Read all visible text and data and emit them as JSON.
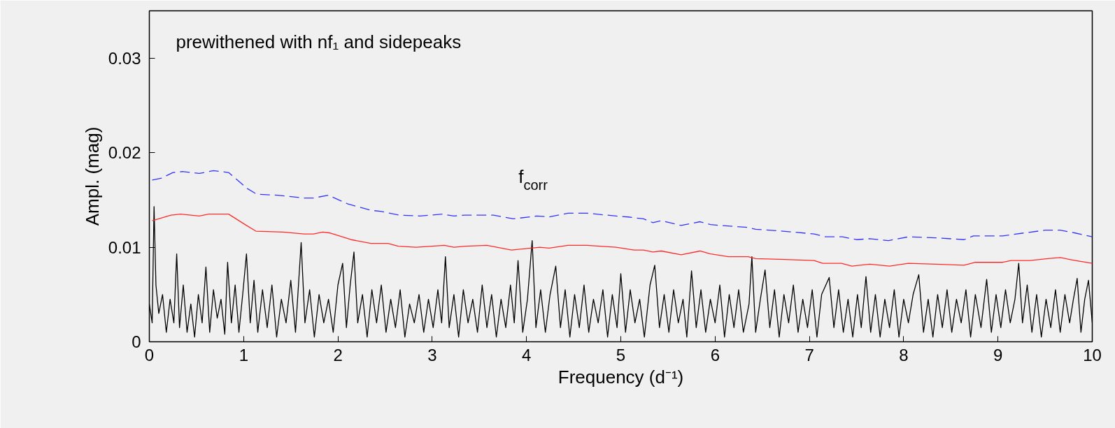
{
  "chart_data": {
    "type": "line",
    "xlabel": "Frequency (d⁻¹)",
    "ylabel": "Ampl. (mag)",
    "xlim": [
      0,
      10
    ],
    "ylim": [
      0,
      0.035
    ],
    "xticks": [
      0,
      1,
      2,
      3,
      4,
      5,
      6,
      7,
      8,
      9,
      10
    ],
    "yticks": [
      0,
      0.01,
      0.02,
      0.03
    ],
    "grid": false,
    "annotations": [
      "prewithened with nf₁ and sidepeaks",
      "f$_{corr}$"
    ],
    "series": [
      {
        "color": "#000000",
        "line_style": "solid",
        "x": [
          0.0,
          0.03,
          0.05,
          0.07,
          0.1,
          0.14,
          0.18,
          0.22,
          0.26,
          0.29,
          0.32,
          0.36,
          0.4,
          0.44,
          0.48,
          0.52,
          0.56,
          0.6,
          0.64,
          0.68,
          0.72,
          0.76,
          0.8,
          0.83,
          0.87,
          0.91,
          0.95,
          0.99,
          1.03,
          1.07,
          1.11,
          1.15,
          1.2,
          1.25,
          1.3,
          1.35,
          1.4,
          1.45,
          1.5,
          1.55,
          1.61,
          1.65,
          1.7,
          1.75,
          1.8,
          1.85,
          1.9,
          1.95,
          2.0,
          2.05,
          2.09,
          2.13,
          2.17,
          2.21,
          2.26,
          2.31,
          2.36,
          2.41,
          2.46,
          2.51,
          2.56,
          2.61,
          2.66,
          2.71,
          2.76,
          2.81,
          2.86,
          2.91,
          2.96,
          3.01,
          3.06,
          3.1,
          3.14,
          3.18,
          3.23,
          3.28,
          3.33,
          3.38,
          3.43,
          3.48,
          3.53,
          3.58,
          3.63,
          3.68,
          3.73,
          3.78,
          3.83,
          3.87,
          3.91,
          3.96,
          4.01,
          4.06,
          4.1,
          4.15,
          4.2,
          4.25,
          4.31,
          4.36,
          4.41,
          4.46,
          4.51,
          4.56,
          4.61,
          4.66,
          4.71,
          4.76,
          4.81,
          4.86,
          4.91,
          4.96,
          5.0,
          5.05,
          5.1,
          5.15,
          5.2,
          5.25,
          5.31,
          5.36,
          5.41,
          5.46,
          5.51,
          5.56,
          5.61,
          5.66,
          5.7,
          5.75,
          5.8,
          5.85,
          5.9,
          5.95,
          6.0,
          6.05,
          6.1,
          6.15,
          6.2,
          6.25,
          6.3,
          6.36,
          6.39,
          6.43,
          6.48,
          6.53,
          6.58,
          6.63,
          6.68,
          6.73,
          6.78,
          6.83,
          6.88,
          6.93,
          6.98,
          7.03,
          7.08,
          7.13,
          7.21,
          7.26,
          7.31,
          7.36,
          7.41,
          7.46,
          7.51,
          7.55,
          7.6,
          7.65,
          7.7,
          7.75,
          7.8,
          7.85,
          7.9,
          7.95,
          8.0,
          8.05,
          8.1,
          8.16,
          8.21,
          8.26,
          8.31,
          8.36,
          8.41,
          8.46,
          8.51,
          8.56,
          8.61,
          8.66,
          8.71,
          8.76,
          8.82,
          8.88,
          8.93,
          8.98,
          9.03,
          9.08,
          9.13,
          9.18,
          9.22,
          9.26,
          9.31,
          9.36,
          9.41,
          9.46,
          9.51,
          9.56,
          9.61,
          9.66,
          9.71,
          9.76,
          9.8,
          9.84,
          9.88,
          9.92,
          9.96,
          10.0
        ],
        "values": [
          0.004,
          0.002,
          0.0143,
          0.006,
          0.003,
          0.005,
          0.001,
          0.0045,
          0.002,
          0.0093,
          0.0015,
          0.006,
          0.001,
          0.004,
          0.0005,
          0.005,
          0.002,
          0.0079,
          0.001,
          0.0055,
          0.0025,
          0.0045,
          0.0008,
          0.0084,
          0.002,
          0.006,
          0.001,
          0.005,
          0.0093,
          0.002,
          0.0065,
          0.001,
          0.0055,
          0.0015,
          0.006,
          0.0005,
          0.0045,
          0.002,
          0.0065,
          0.001,
          0.0105,
          0.002,
          0.0055,
          0.0005,
          0.005,
          0.002,
          0.0045,
          0.001,
          0.006,
          0.0083,
          0.0015,
          0.006,
          0.0095,
          0.002,
          0.005,
          0.0005,
          0.0055,
          0.002,
          0.006,
          0.001,
          0.0045,
          0.0015,
          0.0055,
          0.0005,
          0.004,
          0.002,
          0.005,
          0.001,
          0.0045,
          0.0015,
          0.0055,
          0.002,
          0.009,
          0.0015,
          0.005,
          0.0005,
          0.0055,
          0.002,
          0.0045,
          0.001,
          0.006,
          0.0015,
          0.005,
          0.0005,
          0.0045,
          0.0015,
          0.006,
          0.002,
          0.0086,
          0.001,
          0.0045,
          0.0107,
          0.0015,
          0.0055,
          0.001,
          0.005,
          0.008,
          0.0015,
          0.0055,
          0.0005,
          0.005,
          0.0015,
          0.006,
          0.001,
          0.0045,
          0.002,
          0.0055,
          0.0005,
          0.005,
          0.0015,
          0.0072,
          0.001,
          0.0055,
          0.002,
          0.0045,
          0.0005,
          0.006,
          0.0081,
          0.0015,
          0.005,
          0.001,
          0.0055,
          0.002,
          0.0045,
          0.0005,
          0.0075,
          0.0015,
          0.0055,
          0.001,
          0.0045,
          0.002,
          0.006,
          0.0005,
          0.005,
          0.0015,
          0.0055,
          0.001,
          0.004,
          0.009,
          0.001,
          0.0045,
          0.0076,
          0.0015,
          0.0055,
          0.0005,
          0.005,
          0.002,
          0.006,
          0.001,
          0.0045,
          0.0015,
          0.0055,
          0.0005,
          0.005,
          0.0068,
          0.0015,
          0.0055,
          0.001,
          0.0045,
          0.0005,
          0.005,
          0.0015,
          0.0069,
          0.001,
          0.005,
          0.0005,
          0.0045,
          0.0015,
          0.0055,
          0.0005,
          0.0045,
          0.002,
          0.005,
          0.0071,
          0.001,
          0.0045,
          0.0005,
          0.005,
          0.0015,
          0.0055,
          0.001,
          0.0045,
          0.002,
          0.0055,
          0.0005,
          0.005,
          0.0015,
          0.0066,
          0.001,
          0.005,
          0.0015,
          0.0055,
          0.002,
          0.0045,
          0.0083,
          0.002,
          0.006,
          0.001,
          0.005,
          0.0005,
          0.0045,
          0.0015,
          0.0055,
          0.001,
          0.005,
          0.002,
          0.0045,
          0.0067,
          0.001,
          0.0045,
          0.0065,
          0.002
        ]
      },
      {
        "color": "#ff2a2a",
        "line_style": "solid",
        "x": [
          0.03,
          0.23,
          0.33,
          0.53,
          0.63,
          0.84,
          1.03,
          1.13,
          1.42,
          1.64,
          1.74,
          1.84,
          1.92,
          2.14,
          2.35,
          2.53,
          2.64,
          2.83,
          3.13,
          3.23,
          3.35,
          3.58,
          3.84,
          4.14,
          4.24,
          4.44,
          4.64,
          4.95,
          5.14,
          5.24,
          5.34,
          5.43,
          5.64,
          5.84,
          5.95,
          6.14,
          6.35,
          6.43,
          6.74,
          7.05,
          7.14,
          7.34,
          7.45,
          7.64,
          7.85,
          8.05,
          8.34,
          8.64,
          8.76,
          9.05,
          9.14,
          9.34,
          9.53,
          9.66,
          9.82,
          10.0
        ],
        "values": [
          0.0128,
          0.0134,
          0.0135,
          0.0133,
          0.0135,
          0.0135,
          0.0123,
          0.0117,
          0.0116,
          0.0114,
          0.0114,
          0.0116,
          0.0115,
          0.0108,
          0.0104,
          0.0104,
          0.0101,
          0.01,
          0.0102,
          0.01,
          0.0101,
          0.0102,
          0.0097,
          0.01,
          0.0099,
          0.0102,
          0.0102,
          0.01,
          0.0097,
          0.0097,
          0.0095,
          0.0096,
          0.0092,
          0.0096,
          0.0093,
          0.009,
          0.009,
          0.0088,
          0.0087,
          0.0086,
          0.0083,
          0.0083,
          0.008,
          0.0082,
          0.008,
          0.0083,
          0.0082,
          0.0081,
          0.0084,
          0.0084,
          0.0086,
          0.0086,
          0.0088,
          0.0089,
          0.0086,
          0.0083
        ]
      },
      {
        "color": "#3333ff",
        "line_style": "dashed",
        "x": [
          0.03,
          0.13,
          0.25,
          0.35,
          0.53,
          0.68,
          0.84,
          1.04,
          1.14,
          1.36,
          1.64,
          1.74,
          1.9,
          2.1,
          2.35,
          2.45,
          2.65,
          2.87,
          3.11,
          3.23,
          3.35,
          3.65,
          3.86,
          4.11,
          4.24,
          4.44,
          4.64,
          4.95,
          5.08,
          5.24,
          5.34,
          5.43,
          5.64,
          5.84,
          5.95,
          6.06,
          6.34,
          6.43,
          6.72,
          7.05,
          7.17,
          7.35,
          7.5,
          7.64,
          7.84,
          8.05,
          8.34,
          8.64,
          8.74,
          9.05,
          9.27,
          9.5,
          9.66,
          9.82,
          10.0
        ],
        "values": [
          0.0171,
          0.0173,
          0.0179,
          0.018,
          0.0178,
          0.0181,
          0.0179,
          0.0162,
          0.0156,
          0.0155,
          0.0152,
          0.0152,
          0.0155,
          0.0146,
          0.0139,
          0.0138,
          0.0134,
          0.0133,
          0.0135,
          0.0133,
          0.0134,
          0.0134,
          0.013,
          0.0133,
          0.0132,
          0.0136,
          0.0136,
          0.0133,
          0.0132,
          0.013,
          0.0126,
          0.0128,
          0.0123,
          0.0127,
          0.0124,
          0.0123,
          0.0121,
          0.0119,
          0.0117,
          0.0114,
          0.0111,
          0.0111,
          0.0108,
          0.0109,
          0.0107,
          0.0111,
          0.011,
          0.0108,
          0.0112,
          0.0112,
          0.0115,
          0.0118,
          0.0118,
          0.0115,
          0.0111
        ]
      }
    ]
  }
}
